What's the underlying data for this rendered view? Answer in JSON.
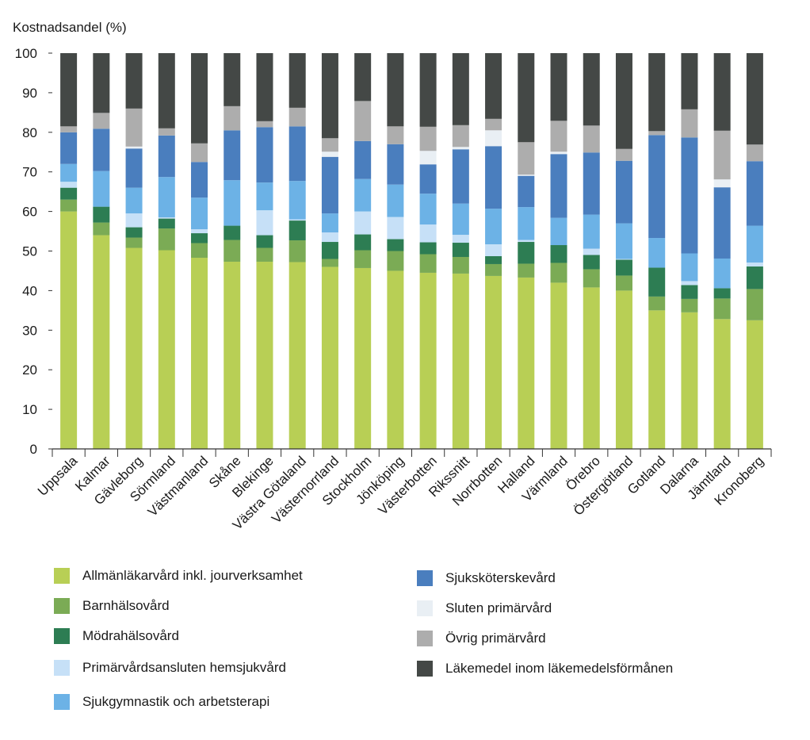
{
  "chart_data": {
    "type": "bar",
    "stacked": true,
    "ylabel": "Kostnadsandel (%)",
    "ylim": [
      0,
      100
    ],
    "yticks": [
      0,
      10,
      20,
      30,
      40,
      50,
      60,
      70,
      80,
      90,
      100
    ],
    "grid": false,
    "legend_position": "bottom",
    "categories": [
      "Uppsala",
      "Kalmar",
      "Gävleborg",
      "Sörmland",
      "Västmanland",
      "Skåne",
      "Blekinge",
      "Västra Götaland",
      "Västernorrland",
      "Stockholm",
      "Jönköping",
      "Västerbotten",
      "Rikssnitt",
      "Norrbotten",
      "Halland",
      "Värmland",
      "Örebro",
      "Östergötland",
      "Gotland",
      "Dalarna",
      "Jämtland",
      "Kronoberg"
    ],
    "series": [
      {
        "name": "Allmänläkarvård inkl. jourverksamhet",
        "color": "#b8cf55",
        "values": [
          60.0,
          54.0,
          50.8,
          50.2,
          48.3,
          47.3,
          47.3,
          47.2,
          46.0,
          45.7,
          45.0,
          44.5,
          44.3,
          43.7,
          43.3,
          42.0,
          40.8,
          40.0,
          35.0,
          34.5,
          32.8,
          32.5
        ]
      },
      {
        "name": "Barnhälsovård",
        "color": "#7bab55",
        "values": [
          3.0,
          3.2,
          2.6,
          5.5,
          3.7,
          5.5,
          3.5,
          5.5,
          2.0,
          4.5,
          5.0,
          4.7,
          4.2,
          3.0,
          3.5,
          5.0,
          4.6,
          3.8,
          3.5,
          3.4,
          5.2,
          7.9
        ]
      },
      {
        "name": "Mödrahälsovård",
        "color": "#2d7d53",
        "values": [
          3.0,
          4.0,
          2.6,
          2.5,
          2.5,
          3.6,
          3.2,
          5.0,
          4.3,
          4.0,
          3.0,
          3.0,
          3.6,
          2.0,
          5.5,
          4.5,
          3.6,
          4.0,
          7.3,
          3.5,
          2.6,
          5.7
        ]
      },
      {
        "name": "Primärvårdsansluten hemsjukvård",
        "color": "#c6e0f7",
        "values": [
          1.5,
          0.0,
          3.5,
          0.3,
          1.0,
          0.0,
          6.3,
          0.3,
          2.4,
          5.8,
          5.6,
          4.5,
          2.0,
          3.0,
          0.5,
          0.0,
          1.6,
          0.2,
          0.0,
          1.0,
          0.0,
          1.0
        ]
      },
      {
        "name": "Sjukgymnastik och arbetsterapi",
        "color": "#6cb2e6",
        "values": [
          4.5,
          9.0,
          6.5,
          10.2,
          8.0,
          11.5,
          7.0,
          9.7,
          4.8,
          8.2,
          8.2,
          7.8,
          7.9,
          9.0,
          8.3,
          6.9,
          8.6,
          9.0,
          7.5,
          7.0,
          7.5,
          9.3
        ]
      },
      {
        "name": "Sjuksköterskevård",
        "color": "#4a7ebe",
        "values": [
          8.0,
          10.7,
          9.9,
          10.5,
          9.0,
          12.6,
          14.0,
          13.8,
          14.3,
          9.6,
          10.2,
          7.4,
          13.7,
          15.8,
          7.9,
          16.1,
          15.7,
          15.8,
          26.0,
          29.3,
          18.0,
          16.3
        ]
      },
      {
        "name": "Sluten primärvård",
        "color": "#e9eff4",
        "values": [
          0.0,
          0.0,
          0.5,
          0.0,
          0.0,
          0.0,
          0.0,
          0.0,
          1.3,
          0.0,
          0.0,
          3.4,
          0.6,
          4.0,
          0.3,
          0.6,
          0.0,
          0.0,
          0.0,
          0.0,
          2.0,
          0.0
        ]
      },
      {
        "name": "Övrig primärvård",
        "color": "#adadad",
        "values": [
          1.5,
          4.0,
          9.6,
          1.8,
          4.7,
          6.1,
          1.5,
          4.7,
          3.4,
          10.1,
          4.5,
          6.1,
          5.5,
          2.9,
          8.2,
          7.8,
          6.8,
          3.0,
          1.0,
          7.1,
          12.3,
          4.2
        ]
      },
      {
        "name": "Läkemedel inom läkemedelsförmånen",
        "color": "#444846",
        "values": [
          18.5,
          15.1,
          14.0,
          19.0,
          22.8,
          13.4,
          17.2,
          13.8,
          21.5,
          12.1,
          18.5,
          18.6,
          18.2,
          16.6,
          22.5,
          17.1,
          18.3,
          24.2,
          19.7,
          14.2,
          19.6,
          23.1
        ]
      }
    ]
  }
}
